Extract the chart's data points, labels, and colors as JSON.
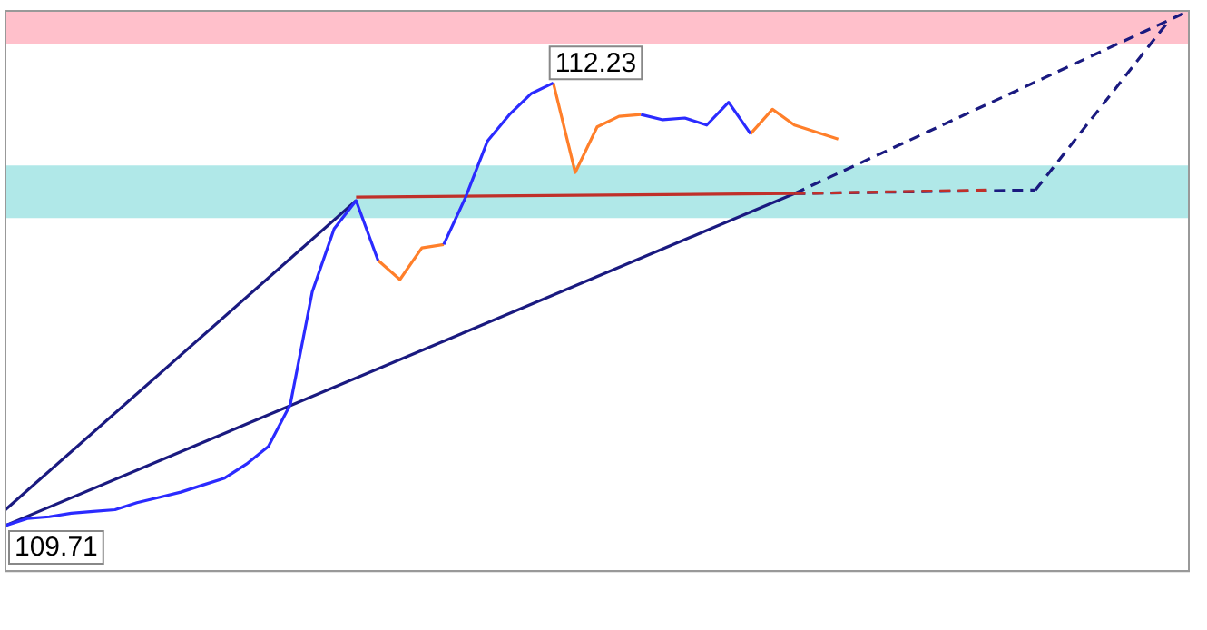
{
  "chart_data": {
    "type": "line",
    "ylim": [
      109.45,
      112.64
    ],
    "categories": [
      null,
      null,
      null,
      null,
      null,
      null,
      null,
      null,
      null,
      null,
      null,
      null,
      null,
      null,
      null,
      null,
      null,
      null,
      null,
      null,
      null,
      null,
      null,
      null,
      null,
      null,
      null,
      null,
      null,
      null,
      null,
      null,
      null,
      null,
      null,
      null,
      null,
      null,
      null,
      null,
      null,
      null,
      null,
      null,
      null,
      null,
      null,
      null,
      null,
      null,
      null,
      null,
      null,
      null,
      null
    ],
    "bands": [
      {
        "axis": "y",
        "from": 112.45,
        "to": 112.64,
        "color": "#ffc0cb"
      },
      {
        "axis": "y",
        "from": 111.46,
        "to": 111.76,
        "color": "#b0e8e8"
      }
    ],
    "series": [
      {
        "color": "#2b2bff",
        "values": [
          109.71,
          109.75,
          109.76,
          109.78,
          109.79,
          109.8,
          109.84,
          109.87,
          109.9,
          109.94,
          109.98,
          110.06,
          110.16,
          110.4,
          111.04,
          111.4,
          111.56,
          111.22,
          null,
          null,
          111.31,
          111.58,
          111.9,
          112.05,
          112.17,
          112.23,
          null,
          null,
          null,
          112.05,
          112.02,
          112.03,
          111.99,
          112.12,
          111.94,
          null,
          null,
          null,
          null,
          null,
          null,
          null,
          null,
          null,
          null,
          null,
          null,
          null,
          null,
          null,
          null,
          null,
          null,
          null,
          null
        ],
        "value_labels": [
          "109.71",
          null,
          null,
          null,
          null,
          null,
          null,
          null,
          null,
          null,
          null,
          null,
          null,
          null,
          null,
          null,
          null,
          null,
          null,
          null,
          null,
          null,
          null,
          null,
          null,
          "112.23",
          null,
          null,
          null,
          null,
          null,
          null,
          null,
          null,
          null,
          null,
          null,
          null,
          null,
          null,
          null,
          null,
          null,
          null,
          null,
          null,
          null,
          null,
          null,
          null,
          null,
          null,
          null,
          null,
          null
        ]
      },
      {
        "color": "#ff7f2a",
        "values": [
          null,
          null,
          null,
          null,
          null,
          null,
          null,
          null,
          null,
          null,
          null,
          null,
          null,
          null,
          null,
          null,
          null,
          111.22,
          111.11,
          111.29,
          111.31,
          null,
          null,
          null,
          null,
          112.23,
          111.72,
          111.98,
          112.04,
          112.05,
          null,
          null,
          null,
          null,
          111.94,
          112.08,
          111.99,
          111.95,
          111.91,
          null,
          null,
          null,
          null,
          null,
          null,
          null,
          null,
          null,
          null,
          null,
          null,
          null,
          null,
          null,
          null
        ]
      },
      {
        "color": "#c0302a",
        "values": [
          null,
          null,
          null,
          null,
          null,
          null,
          null,
          null,
          null,
          null,
          null,
          null,
          null,
          null,
          null,
          null,
          111.58,
          null,
          null,
          null,
          null,
          null,
          null,
          null,
          null,
          null,
          null,
          null,
          null,
          null,
          null,
          null,
          null,
          null,
          null,
          null,
          111.6,
          null,
          null,
          null,
          null,
          null,
          null,
          null,
          null,
          null,
          null,
          null,
          null,
          null,
          null,
          null,
          null,
          null,
          null
        ]
      },
      {
        "color": "#c0302a",
        "line_style": "dashed",
        "values": [
          null,
          null,
          null,
          null,
          null,
          null,
          null,
          null,
          null,
          null,
          null,
          null,
          null,
          null,
          null,
          null,
          null,
          null,
          null,
          null,
          null,
          null,
          null,
          null,
          null,
          null,
          null,
          null,
          null,
          null,
          null,
          null,
          null,
          null,
          null,
          null,
          111.6,
          null,
          null,
          null,
          null,
          null,
          null,
          null,
          null,
          111.62,
          null,
          null,
          null,
          null,
          null,
          null,
          null,
          null,
          null
        ]
      },
      {
        "color": "#1a1a80",
        "values": [
          109.8,
          null,
          null,
          null,
          null,
          null,
          null,
          null,
          null,
          null,
          null,
          null,
          null,
          null,
          null,
          null,
          111.56,
          null,
          null,
          null,
          null,
          null,
          null,
          null,
          null,
          null,
          null,
          null,
          null,
          null,
          null,
          null,
          null,
          null,
          null,
          null,
          null,
          null,
          null,
          null,
          null,
          null,
          null,
          null,
          null,
          null,
          null,
          null,
          null,
          null,
          null,
          null,
          null,
          null,
          null
        ]
      },
      {
        "color": "#1a1a80",
        "values": [
          109.71,
          null,
          null,
          null,
          null,
          null,
          null,
          null,
          null,
          null,
          null,
          null,
          null,
          null,
          null,
          null,
          null,
          null,
          null,
          null,
          null,
          null,
          null,
          null,
          null,
          null,
          null,
          null,
          null,
          null,
          null,
          null,
          null,
          null,
          null,
          null,
          111.6,
          null,
          null,
          null,
          null,
          null,
          null,
          null,
          null,
          null,
          null,
          null,
          null,
          null,
          null,
          null,
          null,
          null,
          null
        ]
      },
      {
        "color": "#1a1a80",
        "line_style": "dashed",
        "values": [
          null,
          null,
          null,
          null,
          null,
          null,
          null,
          null,
          null,
          null,
          null,
          null,
          null,
          null,
          null,
          null,
          null,
          null,
          null,
          null,
          null,
          null,
          null,
          null,
          null,
          null,
          null,
          null,
          null,
          null,
          null,
          null,
          null,
          null,
          null,
          null,
          111.6,
          null,
          null,
          null,
          null,
          null,
          null,
          null,
          null,
          null,
          null,
          null,
          null,
          null,
          null,
          null,
          null,
          null,
          112.64
        ]
      },
      {
        "color": "#1a1a80",
        "line_style": "dashed",
        "values": [
          null,
          null,
          null,
          null,
          null,
          null,
          null,
          null,
          null,
          null,
          null,
          null,
          null,
          null,
          null,
          null,
          null,
          null,
          null,
          null,
          null,
          null,
          null,
          null,
          null,
          null,
          null,
          null,
          null,
          null,
          null,
          null,
          null,
          null,
          null,
          null,
          111.6,
          null,
          null,
          null,
          null,
          null,
          null,
          null,
          null,
          null,
          null,
          111.62,
          null,
          null,
          null,
          null,
          null,
          null,
          null
        ]
      },
      {
        "color": "#1a1a80",
        "line_style": "dashed",
        "values": [
          null,
          null,
          null,
          null,
          null,
          null,
          null,
          null,
          null,
          null,
          null,
          null,
          null,
          null,
          null,
          null,
          null,
          null,
          null,
          null,
          null,
          null,
          null,
          null,
          null,
          null,
          null,
          null,
          null,
          null,
          null,
          null,
          null,
          null,
          null,
          null,
          null,
          null,
          null,
          null,
          null,
          null,
          null,
          null,
          null,
          null,
          null,
          111.62,
          null,
          null,
          null,
          null,
          null,
          112.57,
          null
        ]
      }
    ]
  }
}
